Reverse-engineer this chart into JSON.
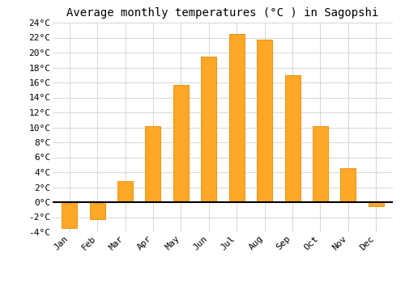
{
  "title": "Average monthly temperatures (°C ) in Sagopshi",
  "months": [
    "Jan",
    "Feb",
    "Mar",
    "Apr",
    "May",
    "Jun",
    "Jul",
    "Aug",
    "Sep",
    "Oct",
    "Nov",
    "Dec"
  ],
  "temperatures": [
    -3.5,
    -2.3,
    2.8,
    10.2,
    15.7,
    19.5,
    22.5,
    21.7,
    17.0,
    10.2,
    4.5,
    -0.5
  ],
  "bar_color": "#FFA726",
  "bar_edge_color": "#E6951A",
  "ylim": [
    -4,
    24
  ],
  "yticks": [
    -4,
    -2,
    0,
    2,
    4,
    6,
    8,
    10,
    12,
    14,
    16,
    18,
    20,
    22,
    24
  ],
  "ytick_labels": [
    "-4°C",
    "-2°C",
    "0°C",
    "2°C",
    "4°C",
    "6°C",
    "8°C",
    "10°C",
    "12°C",
    "14°C",
    "16°C",
    "18°C",
    "20°C",
    "22°C",
    "24°C"
  ],
  "background_color": "#ffffff",
  "grid_color": "#d0d0d0",
  "title_fontsize": 10,
  "tick_fontsize": 8,
  "bar_width": 0.55
}
